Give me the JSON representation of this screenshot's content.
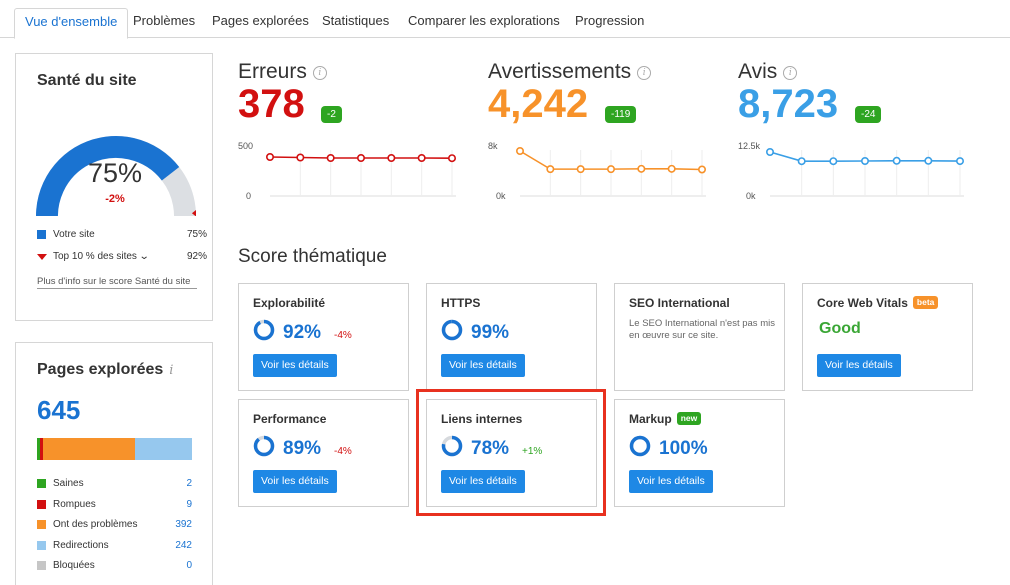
{
  "tabs": [
    {
      "label": "Vue d'ensemble",
      "active": true
    },
    {
      "label": "Problèmes"
    },
    {
      "label": "Pages explorées"
    },
    {
      "label": "Statistiques"
    },
    {
      "label": "Comparer les explorations"
    },
    {
      "label": "Progression"
    }
  ],
  "health": {
    "title": "Santé du site",
    "percent": "75%",
    "percent_value": 75,
    "top10_value": 92,
    "delta": "-2%",
    "your_site_label": "Votre site",
    "your_site_value": "75%",
    "top10_label": "Top 10 % des sites",
    "top10_value_text": "92%",
    "more_info": "Plus d'info sur le score Santé du site",
    "colors": {
      "fill": "#1a73d1",
      "rest": "#dcdfe3",
      "marker": "#d21010"
    }
  },
  "pages": {
    "title": "Pages explorées",
    "info": "i",
    "count": "645",
    "legend": [
      {
        "label": "Saines",
        "value": "2",
        "count": 2,
        "color": "#2ea521"
      },
      {
        "label": "Rompues",
        "value": "9",
        "count": 9,
        "color": "#d21010"
      },
      {
        "label": "Ont des problèmes",
        "value": "392",
        "count": 392,
        "color": "#f7922a"
      },
      {
        "label": "Redirections",
        "value": "242",
        "count": 242,
        "color": "#96c8ee"
      },
      {
        "label": "Bloquées",
        "value": "0",
        "count": 0,
        "color": "#c6c6c6"
      }
    ]
  },
  "metrics": [
    {
      "label": "Erreurs",
      "value": "378",
      "badge": "-2",
      "color": "#d21010",
      "ymax_label": "500",
      "ymin_label": "0",
      "ymax": 500,
      "series": [
        390,
        385,
        380,
        380,
        380,
        380,
        378
      ]
    },
    {
      "label": "Avertissements",
      "value": "4,242",
      "badge": "-119",
      "color": "#f7922a",
      "ymax_label": "8k",
      "ymin_label": "0k",
      "ymax": 8000,
      "series": [
        7200,
        4300,
        4300,
        4300,
        4350,
        4350,
        4242
      ]
    },
    {
      "label": "Avis",
      "value": "8,723",
      "badge": "-24",
      "color": "#3a9fe6",
      "ymax_label": "12.5k",
      "ymin_label": "0k",
      "ymax": 12500,
      "series": [
        11000,
        8700,
        8700,
        8750,
        8800,
        8800,
        8723
      ]
    }
  ],
  "thematic": {
    "title": "Score thématique",
    "button_label": "Voir les détails",
    "cards": [
      {
        "title": "Explorabilité",
        "pct": "92%",
        "pct_value": 92,
        "delta": "-4%",
        "delta_color": "#d21010"
      },
      {
        "title": "HTTPS",
        "pct": "99%",
        "pct_value": 99
      },
      {
        "title": "SEO International",
        "text": "Le SEO International n'est pas mis en œuvre sur ce site."
      },
      {
        "title": "Core Web Vitals",
        "tag": "beta",
        "tag_color": "#f7922a",
        "status": "Good"
      },
      {
        "title": "Performance",
        "pct": "89%",
        "pct_value": 89,
        "delta": "-4%",
        "delta_color": "#d21010"
      },
      {
        "title": "Liens internes",
        "pct": "78%",
        "pct_value": 78,
        "delta": "+1%",
        "delta_color": "#2ea521"
      },
      {
        "title": "Markup",
        "tag": "new",
        "tag_color": "#2ea521",
        "pct": "100%",
        "pct_value": 100
      }
    ]
  },
  "colors": {
    "accent": "#1a73d1",
    "button": "#1e88e5",
    "highlight": "#e8311f"
  }
}
